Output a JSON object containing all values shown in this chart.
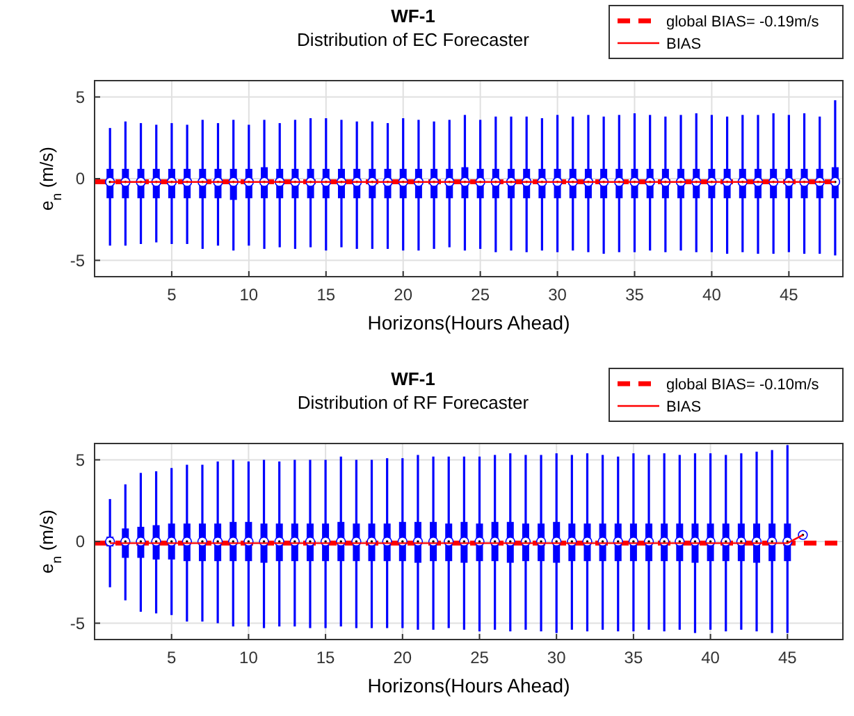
{
  "chart_data": [
    {
      "type": "box",
      "title": "WF-1",
      "subtitle": "Distribution of EC Forecaster",
      "xlabel": "Horizons(Hours Ahead)",
      "ylabel": "e$_{n}$ (m/s)",
      "x": [
        1,
        2,
        3,
        4,
        5,
        6,
        7,
        8,
        9,
        10,
        11,
        12,
        13,
        14,
        15,
        16,
        17,
        18,
        19,
        20,
        21,
        22,
        23,
        24,
        25,
        26,
        27,
        28,
        29,
        30,
        31,
        32,
        33,
        34,
        35,
        36,
        37,
        38,
        39,
        40,
        41,
        42,
        43,
        44,
        45,
        46,
        47,
        48
      ],
      "xlim": [
        0,
        48.5
      ],
      "xticks": [
        5,
        10,
        15,
        20,
        25,
        30,
        35,
        40,
        45
      ],
      "ylim": [
        -6,
        6
      ],
      "yticks": [
        -5,
        0,
        5
      ],
      "grid": true,
      "legend": "top right",
      "series": [
        {
          "type": "box",
          "color": "#0000ff",
          "boxes": [
            {
              "low": -4.1,
              "q1": -1.2,
              "median": -0.2,
              "q3": 0.6,
              "high": 3.1
            },
            {
              "low": -4.1,
              "q1": -1.2,
              "median": -0.2,
              "q3": 0.6,
              "high": 3.5
            },
            {
              "low": -4.0,
              "q1": -1.2,
              "median": -0.2,
              "q3": 0.6,
              "high": 3.4
            },
            {
              "low": -3.9,
              "q1": -1.2,
              "median": -0.2,
              "q3": 0.6,
              "high": 3.3
            },
            {
              "low": -4.0,
              "q1": -1.2,
              "median": -0.2,
              "q3": 0.6,
              "high": 3.4
            },
            {
              "low": -4.0,
              "q1": -1.2,
              "median": -0.2,
              "q3": 0.6,
              "high": 3.3
            },
            {
              "low": -4.3,
              "q1": -1.2,
              "median": -0.2,
              "q3": 0.6,
              "high": 3.6
            },
            {
              "low": -4.1,
              "q1": -1.2,
              "median": -0.2,
              "q3": 0.6,
              "high": 3.4
            },
            {
              "low": -4.4,
              "q1": -1.3,
              "median": -0.2,
              "q3": 0.6,
              "high": 3.6
            },
            {
              "low": -4.1,
              "q1": -1.2,
              "median": -0.2,
              "q3": 0.6,
              "high": 3.3
            },
            {
              "low": -4.3,
              "q1": -1.2,
              "median": -0.2,
              "q3": 0.7,
              "high": 3.6
            },
            {
              "low": -4.2,
              "q1": -1.2,
              "median": -0.2,
              "q3": 0.6,
              "high": 3.4
            },
            {
              "low": -4.3,
              "q1": -1.2,
              "median": -0.2,
              "q3": 0.6,
              "high": 3.6
            },
            {
              "low": -4.2,
              "q1": -1.2,
              "median": -0.2,
              "q3": 0.6,
              "high": 3.7
            },
            {
              "low": -4.4,
              "q1": -1.2,
              "median": -0.2,
              "q3": 0.6,
              "high": 3.7
            },
            {
              "low": -4.2,
              "q1": -1.2,
              "median": -0.2,
              "q3": 0.6,
              "high": 3.6
            },
            {
              "low": -4.3,
              "q1": -1.2,
              "median": -0.2,
              "q3": 0.6,
              "high": 3.5
            },
            {
              "low": -4.3,
              "q1": -1.2,
              "median": -0.2,
              "q3": 0.6,
              "high": 3.5
            },
            {
              "low": -4.3,
              "q1": -1.2,
              "median": -0.2,
              "q3": 0.6,
              "high": 3.4
            },
            {
              "low": -4.4,
              "q1": -1.2,
              "median": -0.2,
              "q3": 0.6,
              "high": 3.7
            },
            {
              "low": -4.4,
              "q1": -1.2,
              "median": -0.2,
              "q3": 0.6,
              "high": 3.6
            },
            {
              "low": -4.3,
              "q1": -1.2,
              "median": -0.2,
              "q3": 0.6,
              "high": 3.5
            },
            {
              "low": -4.2,
              "q1": -1.2,
              "median": -0.2,
              "q3": 0.6,
              "high": 3.6
            },
            {
              "low": -4.4,
              "q1": -1.2,
              "median": -0.2,
              "q3": 0.7,
              "high": 3.9
            },
            {
              "low": -4.3,
              "q1": -1.2,
              "median": -0.2,
              "q3": 0.6,
              "high": 3.6
            },
            {
              "low": -4.5,
              "q1": -1.2,
              "median": -0.2,
              "q3": 0.6,
              "high": 3.8
            },
            {
              "low": -4.4,
              "q1": -1.2,
              "median": -0.2,
              "q3": 0.6,
              "high": 3.8
            },
            {
              "low": -4.5,
              "q1": -1.2,
              "median": -0.2,
              "q3": 0.6,
              "high": 3.8
            },
            {
              "low": -4.4,
              "q1": -1.2,
              "median": -0.2,
              "q3": 0.6,
              "high": 3.7
            },
            {
              "low": -4.5,
              "q1": -1.2,
              "median": -0.2,
              "q3": 0.6,
              "high": 3.9
            },
            {
              "low": -4.4,
              "q1": -1.2,
              "median": -0.2,
              "q3": 0.6,
              "high": 3.8
            },
            {
              "low": -4.5,
              "q1": -1.2,
              "median": -0.2,
              "q3": 0.6,
              "high": 3.9
            },
            {
              "low": -4.6,
              "q1": -1.2,
              "median": -0.2,
              "q3": 0.6,
              "high": 3.8
            },
            {
              "low": -4.5,
              "q1": -1.2,
              "median": -0.2,
              "q3": 0.6,
              "high": 3.9
            },
            {
              "low": -4.5,
              "q1": -1.2,
              "median": -0.2,
              "q3": 0.6,
              "high": 4.0
            },
            {
              "low": -4.4,
              "q1": -1.2,
              "median": -0.2,
              "q3": 0.6,
              "high": 3.9
            },
            {
              "low": -4.5,
              "q1": -1.2,
              "median": -0.2,
              "q3": 0.6,
              "high": 3.8
            },
            {
              "low": -4.4,
              "q1": -1.2,
              "median": -0.2,
              "q3": 0.6,
              "high": 3.9
            },
            {
              "low": -4.5,
              "q1": -1.2,
              "median": -0.2,
              "q3": 0.6,
              "high": 4.0
            },
            {
              "low": -4.5,
              "q1": -1.2,
              "median": -0.2,
              "q3": 0.6,
              "high": 3.9
            },
            {
              "low": -4.6,
              "q1": -1.2,
              "median": -0.2,
              "q3": 0.6,
              "high": 3.8
            },
            {
              "low": -4.5,
              "q1": -1.2,
              "median": -0.2,
              "q3": 0.6,
              "high": 3.9
            },
            {
              "low": -4.6,
              "q1": -1.2,
              "median": -0.2,
              "q3": 0.6,
              "high": 3.9
            },
            {
              "low": -4.6,
              "q1": -1.2,
              "median": -0.2,
              "q3": 0.6,
              "high": 4.0
            },
            {
              "low": -4.5,
              "q1": -1.2,
              "median": -0.2,
              "q3": 0.6,
              "high": 3.9
            },
            {
              "low": -4.6,
              "q1": -1.2,
              "median": -0.2,
              "q3": 0.6,
              "high": 4.0
            },
            {
              "low": -4.6,
              "q1": -1.2,
              "median": -0.2,
              "q3": 0.6,
              "high": 3.8
            },
            {
              "low": -4.7,
              "q1": -1.2,
              "median": -0.2,
              "q3": 0.7,
              "high": 4.8
            }
          ]
        },
        {
          "type": "line",
          "name": "BIAS",
          "color": "#ff0000",
          "values": [
            -0.2,
            -0.2,
            -0.2,
            -0.2,
            -0.2,
            -0.2,
            -0.2,
            -0.2,
            -0.2,
            -0.2,
            -0.2,
            -0.2,
            -0.2,
            -0.2,
            -0.2,
            -0.2,
            -0.2,
            -0.2,
            -0.2,
            -0.2,
            -0.2,
            -0.2,
            -0.2,
            -0.2,
            -0.2,
            -0.2,
            -0.2,
            -0.2,
            -0.2,
            -0.2,
            -0.2,
            -0.2,
            -0.2,
            -0.2,
            -0.2,
            -0.2,
            -0.2,
            -0.2,
            -0.2,
            -0.2,
            -0.2,
            -0.2,
            -0.2,
            -0.2,
            -0.2,
            -0.2,
            -0.2,
            -0.2
          ]
        }
      ],
      "ref_lines": [
        {
          "axis": "y",
          "value": -0.19,
          "label": "global BIAS= -0.19m/s",
          "color": "#ff0000",
          "line_style": "dashed"
        }
      ]
    },
    {
      "type": "box",
      "title": "WF-1",
      "subtitle": "Distribution of RF Forecaster",
      "xlabel": "Horizons(Hours Ahead)",
      "ylabel": "e$_{n}$ (m/s)",
      "x": [
        1,
        2,
        3,
        4,
        5,
        6,
        7,
        8,
        9,
        10,
        11,
        12,
        13,
        14,
        15,
        16,
        17,
        18,
        19,
        20,
        21,
        22,
        23,
        24,
        25,
        26,
        27,
        28,
        29,
        30,
        31,
        32,
        33,
        34,
        35,
        36,
        37,
        38,
        39,
        40,
        41,
        42,
        43,
        44,
        45,
        46
      ],
      "xlim": [
        0,
        48.6
      ],
      "xticks": [
        5,
        10,
        15,
        20,
        25,
        30,
        35,
        40,
        45
      ],
      "ylim": [
        -6,
        6
      ],
      "yticks": [
        -5,
        0,
        5
      ],
      "grid": true,
      "legend": "top right",
      "series": [
        {
          "type": "box",
          "color": "#0000ff",
          "boxes": [
            {
              "low": -2.8,
              "q1": -0.3,
              "median": 0,
              "q3": 0.3,
              "high": 2.6
            },
            {
              "low": -3.6,
              "q1": -1.0,
              "median": 0,
              "q3": 0.8,
              "high": 3.5
            },
            {
              "low": -4.3,
              "q1": -1.0,
              "median": 0,
              "q3": 0.9,
              "high": 4.2
            },
            {
              "low": -4.4,
              "q1": -1.1,
              "median": 0,
              "q3": 1.0,
              "high": 4.3
            },
            {
              "low": -4.5,
              "q1": -1.1,
              "median": 0,
              "q3": 1.1,
              "high": 4.5
            },
            {
              "low": -4.9,
              "q1": -1.2,
              "median": 0,
              "q3": 1.1,
              "high": 4.7
            },
            {
              "low": -4.9,
              "q1": -1.2,
              "median": 0,
              "q3": 1.1,
              "high": 4.7
            },
            {
              "low": -5.0,
              "q1": -1.2,
              "median": 0,
              "q3": 1.1,
              "high": 4.9
            },
            {
              "low": -5.2,
              "q1": -1.2,
              "median": 0,
              "q3": 1.2,
              "high": 5.0
            },
            {
              "low": -5.2,
              "q1": -1.2,
              "median": 0,
              "q3": 1.2,
              "high": 4.9
            },
            {
              "low": -5.3,
              "q1": -1.3,
              "median": 0,
              "q3": 1.1,
              "high": 5.0
            },
            {
              "low": -5.2,
              "q1": -1.2,
              "median": 0,
              "q3": 1.1,
              "high": 4.9
            },
            {
              "low": -5.2,
              "q1": -1.2,
              "median": 0,
              "q3": 1.1,
              "high": 5.0
            },
            {
              "low": -5.3,
              "q1": -1.2,
              "median": 0,
              "q3": 1.1,
              "high": 5.0
            },
            {
              "low": -5.3,
              "q1": -1.2,
              "median": 0,
              "q3": 1.1,
              "high": 5.0
            },
            {
              "low": -5.2,
              "q1": -1.2,
              "median": 0,
              "q3": 1.2,
              "high": 5.2
            },
            {
              "low": -5.3,
              "q1": -1.2,
              "median": 0,
              "q3": 1.1,
              "high": 5.0
            },
            {
              "low": -5.3,
              "q1": -1.2,
              "median": 0,
              "q3": 1.1,
              "high": 5.0
            },
            {
              "low": -5.3,
              "q1": -1.2,
              "median": 0,
              "q3": 1.1,
              "high": 5.1
            },
            {
              "low": -5.3,
              "q1": -1.2,
              "median": 0,
              "q3": 1.2,
              "high": 5.1
            },
            {
              "low": -5.4,
              "q1": -1.3,
              "median": 0,
              "q3": 1.2,
              "high": 5.3
            },
            {
              "low": -5.4,
              "q1": -1.2,
              "median": 0,
              "q3": 1.2,
              "high": 5.2
            },
            {
              "low": -5.3,
              "q1": -1.2,
              "median": 0,
              "q3": 1.1,
              "high": 5.2
            },
            {
              "low": -5.4,
              "q1": -1.3,
              "median": 0,
              "q3": 1.2,
              "high": 5.2
            },
            {
              "low": -5.5,
              "q1": -1.2,
              "median": 0,
              "q3": 1.1,
              "high": 5.2
            },
            {
              "low": -5.4,
              "q1": -1.2,
              "median": 0,
              "q3": 1.2,
              "high": 5.3
            },
            {
              "low": -5.5,
              "q1": -1.3,
              "median": 0,
              "q3": 1.2,
              "high": 5.4
            },
            {
              "low": -5.4,
              "q1": -1.2,
              "median": 0,
              "q3": 1.1,
              "high": 5.3
            },
            {
              "low": -5.5,
              "q1": -1.2,
              "median": 0,
              "q3": 1.1,
              "high": 5.3
            },
            {
              "low": -5.6,
              "q1": -1.3,
              "median": 0,
              "q3": 1.2,
              "high": 5.4
            },
            {
              "low": -5.4,
              "q1": -1.2,
              "median": 0,
              "q3": 1.1,
              "high": 5.3
            },
            {
              "low": -5.5,
              "q1": -1.2,
              "median": 0,
              "q3": 1.1,
              "high": 5.4
            },
            {
              "low": -5.4,
              "q1": -1.2,
              "median": 0,
              "q3": 1.1,
              "high": 5.3
            },
            {
              "low": -5.5,
              "q1": -1.2,
              "median": 0,
              "q3": 1.1,
              "high": 5.2
            },
            {
              "low": -5.5,
              "q1": -1.2,
              "median": 0,
              "q3": 1.1,
              "high": 5.4
            },
            {
              "low": -5.4,
              "q1": -1.2,
              "median": 0,
              "q3": 1.1,
              "high": 5.3
            },
            {
              "low": -5.5,
              "q1": -1.2,
              "median": 0,
              "q3": 1.1,
              "high": 5.4
            },
            {
              "low": -5.4,
              "q1": -1.2,
              "median": 0,
              "q3": 1.1,
              "high": 5.3
            },
            {
              "low": -5.6,
              "q1": -1.3,
              "median": 0,
              "q3": 1.1,
              "high": 5.4
            },
            {
              "low": -5.4,
              "q1": -1.2,
              "median": 0,
              "q3": 1.1,
              "high": 5.4
            },
            {
              "low": -5.5,
              "q1": -1.2,
              "median": 0,
              "q3": 1.1,
              "high": 5.3
            },
            {
              "low": -5.4,
              "q1": -1.2,
              "median": 0,
              "q3": 1.1,
              "high": 5.4
            },
            {
              "low": -5.5,
              "q1": -1.3,
              "median": 0,
              "q3": 1.1,
              "high": 5.5
            },
            {
              "low": -5.6,
              "q1": -1.2,
              "median": 0,
              "q3": 1.1,
              "high": 5.6
            },
            {
              "low": -5.6,
              "q1": -1.2,
              "median": 0,
              "q3": 1.1,
              "high": 5.9
            },
            {
              "low": 0.3,
              "q1": 0.3,
              "median": 0.4,
              "q3": 0.5,
              "high": 0.5
            }
          ]
        },
        {
          "type": "line",
          "name": "BIAS",
          "color": "#ff0000",
          "values": [
            -0.1,
            -0.1,
            -0.1,
            -0.1,
            -0.1,
            -0.1,
            -0.1,
            -0.1,
            -0.1,
            -0.1,
            -0.1,
            -0.1,
            -0.1,
            -0.1,
            -0.1,
            -0.1,
            -0.1,
            -0.1,
            -0.1,
            -0.1,
            -0.1,
            -0.1,
            -0.1,
            -0.1,
            -0.1,
            -0.1,
            -0.1,
            -0.1,
            -0.1,
            -0.1,
            -0.1,
            -0.1,
            -0.1,
            -0.1,
            -0.1,
            -0.1,
            -0.1,
            -0.1,
            -0.1,
            -0.1,
            -0.1,
            -0.1,
            -0.1,
            -0.1,
            -0.1,
            0.4
          ]
        }
      ],
      "ref_lines": [
        {
          "axis": "y",
          "value": -0.1,
          "label": "global BIAS= -0.10m/s",
          "color": "#ff0000",
          "line_style": "dashed"
        }
      ]
    }
  ]
}
